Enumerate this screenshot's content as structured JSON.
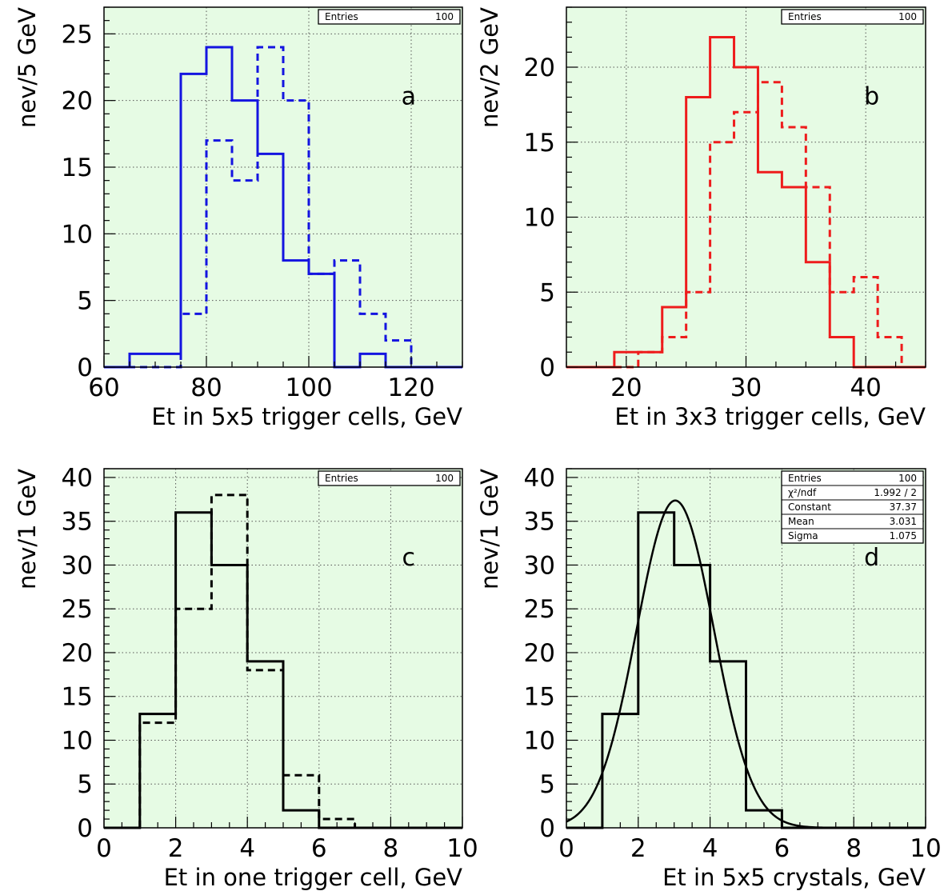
{
  "chart_data": [
    {
      "type": "histogram",
      "panel_label": "a",
      "xlabel": "Et in 5x5 trigger cells, GeV",
      "ylabel": "nev/5 GeV",
      "xlim": [
        60,
        130
      ],
      "ylim": [
        0,
        27
      ],
      "xticks": [
        60,
        80,
        100,
        120
      ],
      "yticks": [
        0,
        5,
        10,
        15,
        20,
        25
      ],
      "grid": true,
      "stats": [
        {
          "label": "Entries",
          "value": "100"
        }
      ],
      "series": [
        {
          "style": "solid",
          "color": "#1414e0",
          "edges": [
            60,
            65,
            70,
            75,
            80,
            85,
            90,
            95,
            100,
            105,
            110,
            115,
            120,
            125,
            130
          ],
          "counts": [
            0,
            1,
            1,
            22,
            24,
            20,
            16,
            8,
            7,
            0,
            1,
            0,
            0,
            0
          ]
        },
        {
          "style": "dashed",
          "color": "#1414e0",
          "edges": [
            60,
            65,
            70,
            75,
            80,
            85,
            90,
            95,
            100,
            105,
            110,
            115,
            120,
            125,
            130
          ],
          "counts": [
            0,
            0,
            0,
            4,
            17,
            14,
            24,
            20,
            7,
            8,
            4,
            2,
            0,
            0
          ]
        }
      ]
    },
    {
      "type": "histogram",
      "panel_label": "b",
      "xlabel": "Et in 3x3 trigger cells, GeV",
      "ylabel": "nev/2 GeV",
      "xlim": [
        15,
        45
      ],
      "ylim": [
        0,
        24
      ],
      "xticks": [
        20,
        30,
        40
      ],
      "yticks": [
        0,
        5,
        10,
        15,
        20
      ],
      "grid": true,
      "stats": [
        {
          "label": "Entries",
          "value": "100"
        }
      ],
      "series": [
        {
          "style": "solid",
          "color": "#ee1c1c",
          "edges": [
            15,
            17,
            19,
            21,
            23,
            25,
            27,
            29,
            31,
            33,
            35,
            37,
            39,
            41,
            43,
            45
          ],
          "counts": [
            0,
            0,
            1,
            1,
            4,
            18,
            22,
            20,
            13,
            12,
            7,
            2,
            0,
            0,
            0
          ]
        },
        {
          "style": "dashed",
          "color": "#ee1c1c",
          "edges": [
            15,
            17,
            19,
            21,
            23,
            25,
            27,
            29,
            31,
            33,
            35,
            37,
            39,
            41,
            43,
            45
          ],
          "counts": [
            0,
            0,
            0,
            1,
            2,
            5,
            15,
            17,
            19,
            16,
            12,
            5,
            6,
            2,
            0
          ]
        }
      ]
    },
    {
      "type": "histogram",
      "panel_label": "c",
      "xlabel": "Et in one trigger cell, GeV",
      "ylabel": "nev/1 GeV",
      "xlim": [
        0,
        10
      ],
      "ylim": [
        0,
        41
      ],
      "xticks": [
        0,
        2,
        4,
        6,
        8,
        10
      ],
      "yticks": [
        0,
        5,
        10,
        15,
        20,
        25,
        30,
        35,
        40
      ],
      "grid": true,
      "stats": [
        {
          "label": "Entries",
          "value": "100"
        }
      ],
      "series": [
        {
          "style": "solid",
          "color": "#000000",
          "edges": [
            0,
            1,
            2,
            3,
            4,
            5,
            6,
            7,
            8,
            9,
            10
          ],
          "counts": [
            0,
            13,
            36,
            30,
            19,
            2,
            0,
            0,
            0,
            0
          ]
        },
        {
          "style": "dashed",
          "color": "#000000",
          "edges": [
            0,
            1,
            2,
            3,
            4,
            5,
            6,
            7,
            8,
            9,
            10
          ],
          "counts": [
            0,
            12,
            25,
            38,
            18,
            6,
            1,
            0,
            0,
            0
          ]
        }
      ]
    },
    {
      "type": "histogram",
      "panel_label": "d",
      "xlabel": "Et in 5x5 crystals, GeV",
      "ylabel": "nev/1 GeV",
      "xlim": [
        0,
        10
      ],
      "ylim": [
        0,
        41
      ],
      "xticks": [
        0,
        2,
        4,
        6,
        8,
        10
      ],
      "yticks": [
        0,
        5,
        10,
        15,
        20,
        25,
        30,
        35,
        40
      ],
      "grid": true,
      "stats": [
        {
          "label": "Entries",
          "value": "100"
        },
        {
          "label": "χ²/ndf",
          "value": "1.992    /    2"
        },
        {
          "label": "Constant",
          "value": "37.37"
        },
        {
          "label": "Mean",
          "value": "3.031"
        },
        {
          "label": "Sigma",
          "value": "1.075"
        }
      ],
      "series": [
        {
          "style": "solid",
          "color": "#000000",
          "edges": [
            0,
            1,
            2,
            3,
            4,
            5,
            6,
            7,
            8,
            9,
            10
          ],
          "counts": [
            0,
            13,
            36,
            30,
            19,
            2,
            0,
            0,
            0,
            0
          ]
        }
      ],
      "fit": {
        "function": "gaus",
        "constant": 37.37,
        "mean": 3.031,
        "sigma": 1.075
      }
    }
  ]
}
